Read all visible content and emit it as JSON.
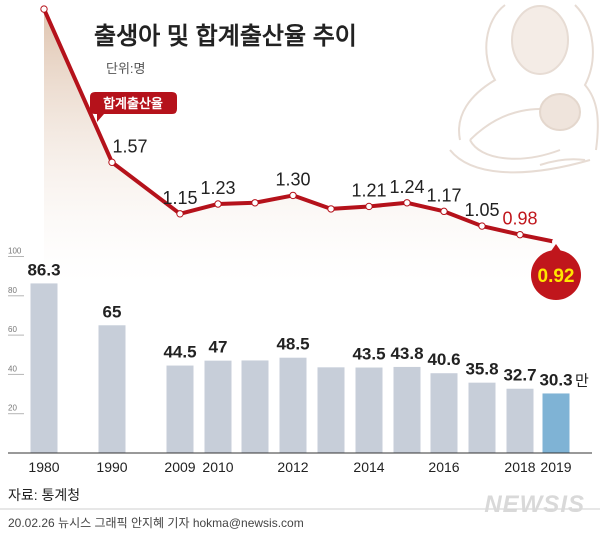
{
  "chart_data": [
    {
      "type": "line",
      "title": "출생아 및 합계출산율 추이",
      "series": [
        {
          "name": "합계출산율",
          "x": [
            "1980",
            "1990",
            "2009",
            "2010",
            "2011",
            "2012",
            "2013",
            "2014",
            "2015",
            "2016",
            "2017",
            "2018",
            "2019"
          ],
          "values": [
            2.82,
            1.57,
            1.15,
            1.23,
            1.24,
            1.3,
            1.19,
            1.21,
            1.24,
            1.17,
            1.05,
            0.98,
            0.92
          ],
          "labels": [
            "2.82",
            "1.57",
            "1.15",
            "1.23",
            "",
            "1.30",
            "",
            "1.21",
            "1.24",
            "1.17",
            "1.05",
            "0.98",
            "0.92"
          ]
        }
      ],
      "highlight_color": "#c0161c"
    },
    {
      "type": "bar",
      "unit": "단위:명",
      "value_unit": "만",
      "categories": [
        "1980",
        "1990",
        "2009",
        "2010",
        "2011",
        "2012",
        "2013",
        "2014",
        "2015",
        "2016",
        "2017",
        "2018",
        "2019"
      ],
      "x_tick_labels": [
        "1980",
        "1990",
        "2009",
        "2010",
        "",
        "2012",
        "",
        "2014",
        "",
        "2016",
        "",
        "2018",
        "2019"
      ],
      "values": [
        86.3,
        65,
        44.5,
        47,
        47.1,
        48.5,
        43.6,
        43.5,
        43.8,
        40.6,
        35.8,
        32.7,
        30.3
      ],
      "value_labels": [
        "86.3",
        "65",
        "44.5",
        "47",
        "",
        "48.5",
        "",
        "43.5",
        "43.8",
        "40.6",
        "35.8",
        "32.7",
        "30.3"
      ],
      "y_ticks": [
        20,
        40,
        60,
        80,
        100
      ],
      "ylim": [
        0,
        100
      ],
      "bar_color": "#c7ced9",
      "highlight_color": "#7fb3d5"
    }
  ],
  "footer": {
    "source": "자료: 통계청",
    "credit": "20.02.26 뉴시스 그래픽 안지혜 기자 hokma@newsis.com",
    "logo": "NEWSIS"
  }
}
